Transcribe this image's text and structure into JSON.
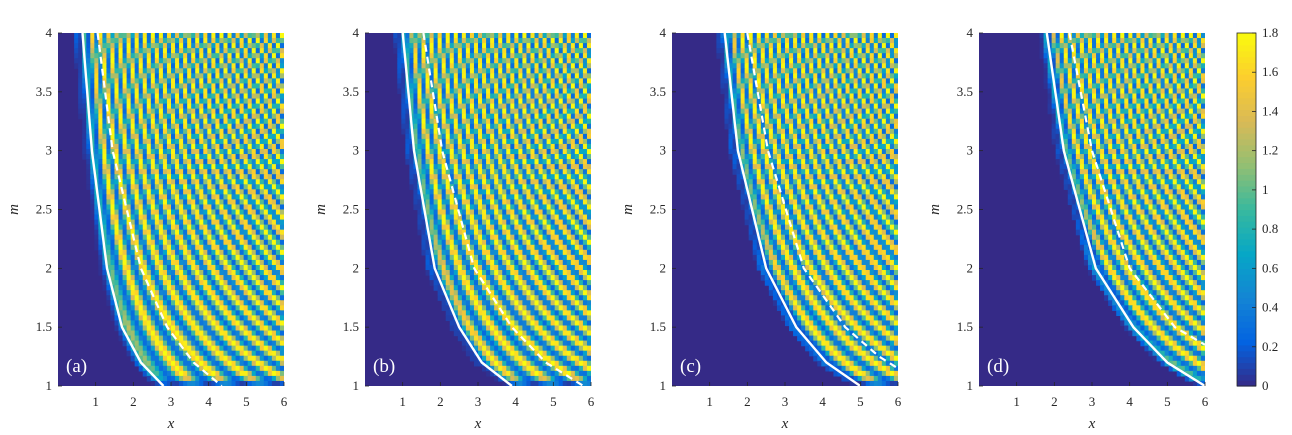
{
  "chart_data": {
    "type": "heatmap",
    "xlabel": "x",
    "ylabel": "m",
    "xlim": [
      0,
      6
    ],
    "ylim": [
      1,
      4
    ],
    "x_ticks": [
      "1",
      "2",
      "3",
      "4",
      "5",
      "6"
    ],
    "y_ticks": [
      "1",
      "1.5",
      "2",
      "2.5",
      "3",
      "3.5",
      "4"
    ],
    "colorbar": {
      "range": [
        0,
        1.8
      ],
      "ticks": [
        "0",
        "0.2",
        "0.4",
        "0.6",
        "0.8",
        "1",
        "1.2",
        "1.4",
        "1.6",
        "1.8"
      ],
      "colormap": [
        "#352a87",
        "#0363e1",
        "#1485d4",
        "#06a7c6",
        "#38b99e",
        "#92bf73",
        "#d9ba56",
        "#fcce2e",
        "#f9fb0e"
      ]
    },
    "panels": [
      {
        "label": "(a)",
        "solid_curve": [
          [
            0.65,
            4
          ],
          [
            0.9,
            3
          ],
          [
            1.3,
            2
          ],
          [
            1.7,
            1.5
          ],
          [
            2.2,
            1.2
          ],
          [
            2.8,
            1
          ]
        ],
        "dashed_curve": [
          [
            1.05,
            4
          ],
          [
            1.45,
            3
          ],
          [
            2.2,
            2
          ],
          [
            2.9,
            1.5
          ],
          [
            3.6,
            1.2
          ],
          [
            4.35,
            1
          ]
        ]
      },
      {
        "label": "(b)",
        "solid_curve": [
          [
            1.0,
            4
          ],
          [
            1.3,
            3
          ],
          [
            1.85,
            2
          ],
          [
            2.5,
            1.5
          ],
          [
            3.1,
            1.2
          ],
          [
            3.9,
            1
          ]
        ],
        "dashed_curve": [
          [
            1.55,
            4
          ],
          [
            2.05,
            3
          ],
          [
            2.9,
            2
          ],
          [
            3.9,
            1.5
          ],
          [
            4.8,
            1.2
          ],
          [
            5.8,
            1
          ]
        ]
      },
      {
        "label": "(c)",
        "solid_curve": [
          [
            1.4,
            4
          ],
          [
            1.75,
            3
          ],
          [
            2.5,
            2
          ],
          [
            3.3,
            1.5
          ],
          [
            4.1,
            1.2
          ],
          [
            5.0,
            1
          ]
        ],
        "dashed_curve": [
          [
            2.0,
            4
          ],
          [
            2.55,
            3
          ],
          [
            3.5,
            2
          ],
          [
            4.6,
            1.5
          ],
          [
            5.5,
            1.25
          ],
          [
            6.0,
            1.15
          ]
        ]
      },
      {
        "label": "(d)",
        "solid_curve": [
          [
            1.8,
            4
          ],
          [
            2.25,
            3
          ],
          [
            3.1,
            2
          ],
          [
            4.1,
            1.5
          ],
          [
            5.0,
            1.2
          ],
          [
            6.0,
            1
          ]
        ],
        "dashed_curve": [
          [
            2.4,
            4
          ],
          [
            3.0,
            3
          ],
          [
            4.0,
            2
          ],
          [
            5.2,
            1.5
          ],
          [
            6.0,
            1.35
          ]
        ]
      }
    ]
  }
}
